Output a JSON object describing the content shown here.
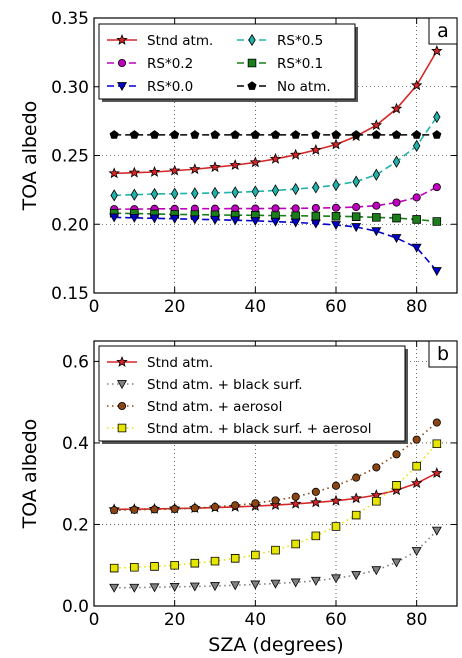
{
  "figure": {
    "xlabel": "SZA (degrees)"
  },
  "chart_data": [
    {
      "type": "line",
      "panel_label": "a",
      "ylabel": "TOA albedo",
      "xlim": [
        0,
        90
      ],
      "ylim": [
        0.15,
        0.35
      ],
      "xticks": [
        "0",
        "20",
        "40",
        "60",
        "80"
      ],
      "yticks": [
        "0.15",
        "0.20",
        "0.25",
        "0.30",
        "0.35"
      ],
      "grid": true,
      "legend_position": "top-left",
      "x": [
        5,
        10,
        15,
        20,
        25,
        30,
        35,
        40,
        45,
        50,
        55,
        60,
        65,
        70,
        75,
        80,
        85
      ],
      "series": [
        {
          "name": "Stnd atm.",
          "color": "#d62728",
          "marker": "star",
          "linestyle": "solid",
          "values": [
            0.237,
            0.2375,
            0.238,
            0.239,
            0.24,
            0.2415,
            0.243,
            0.245,
            0.2475,
            0.2505,
            0.254,
            0.258,
            0.264,
            0.272,
            0.284,
            0.301,
            0.326
          ]
        },
        {
          "name": "RS*0.5",
          "color": "#20b2aa",
          "marker": "diamond",
          "linestyle": "dashed",
          "values": [
            0.221,
            0.2215,
            0.222,
            0.2222,
            0.2225,
            0.2228,
            0.2232,
            0.2238,
            0.2246,
            0.2256,
            0.2268,
            0.2285,
            0.231,
            0.236,
            0.2455,
            0.257,
            0.278
          ]
        },
        {
          "name": "RS*0.2",
          "color": "#bf00bf",
          "marker": "circle",
          "linestyle": "dashed",
          "values": [
            0.211,
            0.211,
            0.2112,
            0.2112,
            0.2113,
            0.2113,
            0.2114,
            0.2114,
            0.2115,
            0.2115,
            0.2118,
            0.212,
            0.2125,
            0.2135,
            0.2158,
            0.2195,
            0.227
          ]
        },
        {
          "name": "RS*0.1",
          "color": "#1a7f1a",
          "marker": "square",
          "linestyle": "dashed",
          "values": [
            0.208,
            0.2078,
            0.2075,
            0.2072,
            0.207,
            0.2068,
            0.2066,
            0.2065,
            0.2063,
            0.2062,
            0.206,
            0.2058,
            0.2055,
            0.205,
            0.2045,
            0.2035,
            0.202
          ]
        },
        {
          "name": "RS*0.0",
          "color": "#0000cd",
          "marker": "triangle-down",
          "linestyle": "dashed",
          "values": [
            0.205,
            0.2047,
            0.2043,
            0.204,
            0.2036,
            0.2033,
            0.2029,
            0.2025,
            0.2019,
            0.2013,
            0.2005,
            0.1995,
            0.198,
            0.195,
            0.19,
            0.183,
            0.166
          ]
        },
        {
          "name": "No atm.",
          "color": "#000000",
          "marker": "pentagon",
          "linestyle": "dashed",
          "values": [
            0.265,
            0.265,
            0.265,
            0.265,
            0.265,
            0.265,
            0.265,
            0.265,
            0.265,
            0.265,
            0.265,
            0.265,
            0.265,
            0.265,
            0.265,
            0.265,
            0.265
          ]
        }
      ]
    },
    {
      "type": "line",
      "panel_label": "b",
      "ylabel": "TOA albedo",
      "xlim": [
        0,
        90
      ],
      "ylim": [
        0.0,
        0.65
      ],
      "xticks": [
        "0",
        "20",
        "40",
        "60",
        "80"
      ],
      "yticks": [
        "0.0",
        "0.2",
        "0.4",
        "0.6"
      ],
      "grid": true,
      "legend_position": "top-left",
      "x": [
        5,
        10,
        15,
        20,
        25,
        30,
        35,
        40,
        45,
        50,
        55,
        60,
        65,
        70,
        75,
        80,
        85
      ],
      "series": [
        {
          "name": "Stnd atm.",
          "color": "#d62728",
          "marker": "star",
          "linestyle": "solid",
          "values": [
            0.237,
            0.2375,
            0.238,
            0.239,
            0.24,
            0.2415,
            0.243,
            0.245,
            0.2475,
            0.2505,
            0.254,
            0.258,
            0.264,
            0.272,
            0.284,
            0.301,
            0.326
          ]
        },
        {
          "name": "Stnd atm. + black surf.",
          "color": "#808080",
          "marker": "triangle-down",
          "linestyle": "dotted",
          "values": [
            0.045,
            0.045,
            0.046,
            0.047,
            0.048,
            0.049,
            0.051,
            0.053,
            0.055,
            0.058,
            0.062,
            0.068,
            0.076,
            0.088,
            0.107,
            0.135,
            0.185
          ]
        },
        {
          "name": "Stnd atm. + aerosol",
          "color": "#8b4513",
          "marker": "circle",
          "linestyle": "dotted",
          "values": [
            0.235,
            0.236,
            0.237,
            0.238,
            0.24,
            0.243,
            0.247,
            0.252,
            0.259,
            0.268,
            0.28,
            0.295,
            0.315,
            0.34,
            0.372,
            0.408,
            0.45
          ]
        },
        {
          "name": "Stnd atm. + black surf. + aerosol",
          "color": "#e5e500",
          "marker": "square",
          "linestyle": "dotted",
          "values": [
            0.093,
            0.095,
            0.097,
            0.1,
            0.105,
            0.11,
            0.117,
            0.125,
            0.137,
            0.152,
            0.172,
            0.195,
            0.223,
            0.257,
            0.296,
            0.343,
            0.398
          ]
        }
      ]
    }
  ]
}
